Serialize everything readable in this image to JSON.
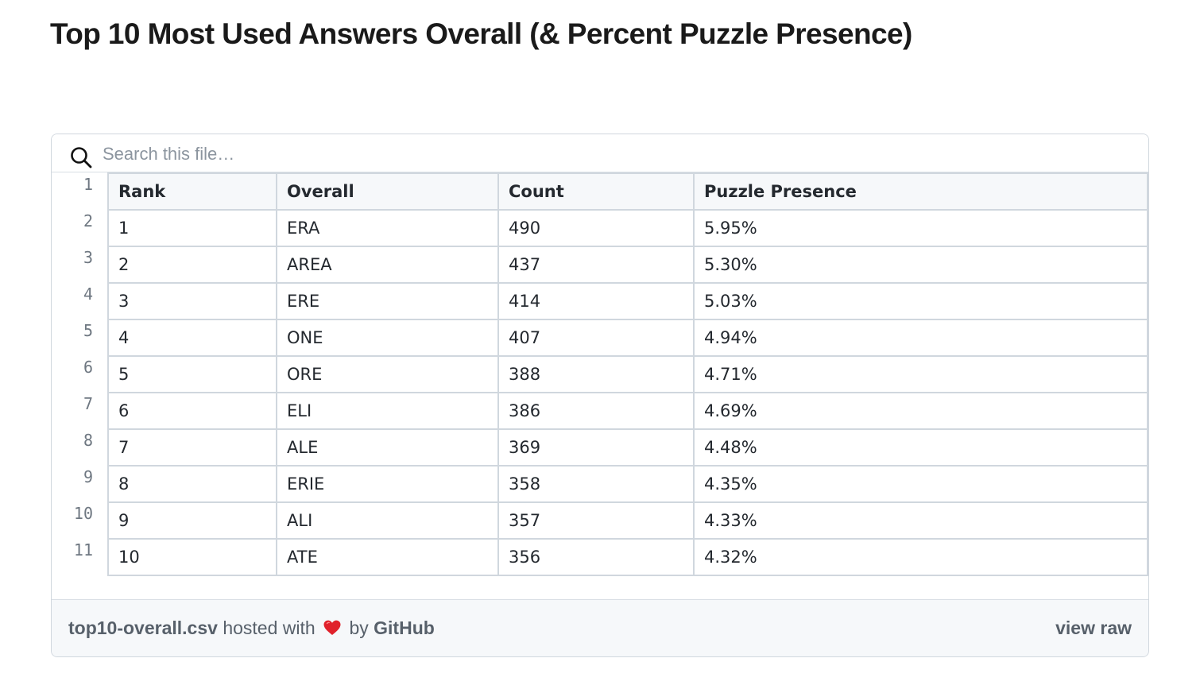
{
  "page": {
    "title": "Top 10 Most Used Answers Overall (& Percent Puzzle Presence)"
  },
  "gist": {
    "search_placeholder": "Search this file…",
    "search_icon": "search-icon",
    "line_numbers": [
      "1",
      "2",
      "3",
      "4",
      "5",
      "6",
      "7",
      "8",
      "9",
      "10",
      "11"
    ],
    "table": {
      "headers": [
        "Rank",
        "Overall",
        "Count",
        "Puzzle Presence"
      ],
      "rows": [
        [
          "1",
          "ERA",
          "490",
          "5.95%"
        ],
        [
          "2",
          "AREA",
          "437",
          "5.30%"
        ],
        [
          "3",
          "ERE",
          "414",
          "5.03%"
        ],
        [
          "4",
          "ONE",
          "407",
          "4.94%"
        ],
        [
          "5",
          "ORE",
          "388",
          "4.71%"
        ],
        [
          "6",
          "ELI",
          "386",
          "4.69%"
        ],
        [
          "7",
          "ALE",
          "369",
          "4.48%"
        ],
        [
          "8",
          "ERIE",
          "358",
          "4.35%"
        ],
        [
          "9",
          "ALI",
          "357",
          "4.33%"
        ],
        [
          "10",
          "ATE",
          "356",
          "4.32%"
        ]
      ]
    },
    "footer": {
      "filename": "top10-overall.csv",
      "hosted_with": "hosted with",
      "heart_icon": "heart-icon",
      "by": "by",
      "host": "GitHub",
      "view_raw": "view raw"
    }
  },
  "colors": {
    "border": "#d0d7de",
    "header_bg": "#f6f8fa",
    "footer_bg": "#f6f8fa",
    "muted_text": "#57606a",
    "heart": "#e0212b"
  }
}
